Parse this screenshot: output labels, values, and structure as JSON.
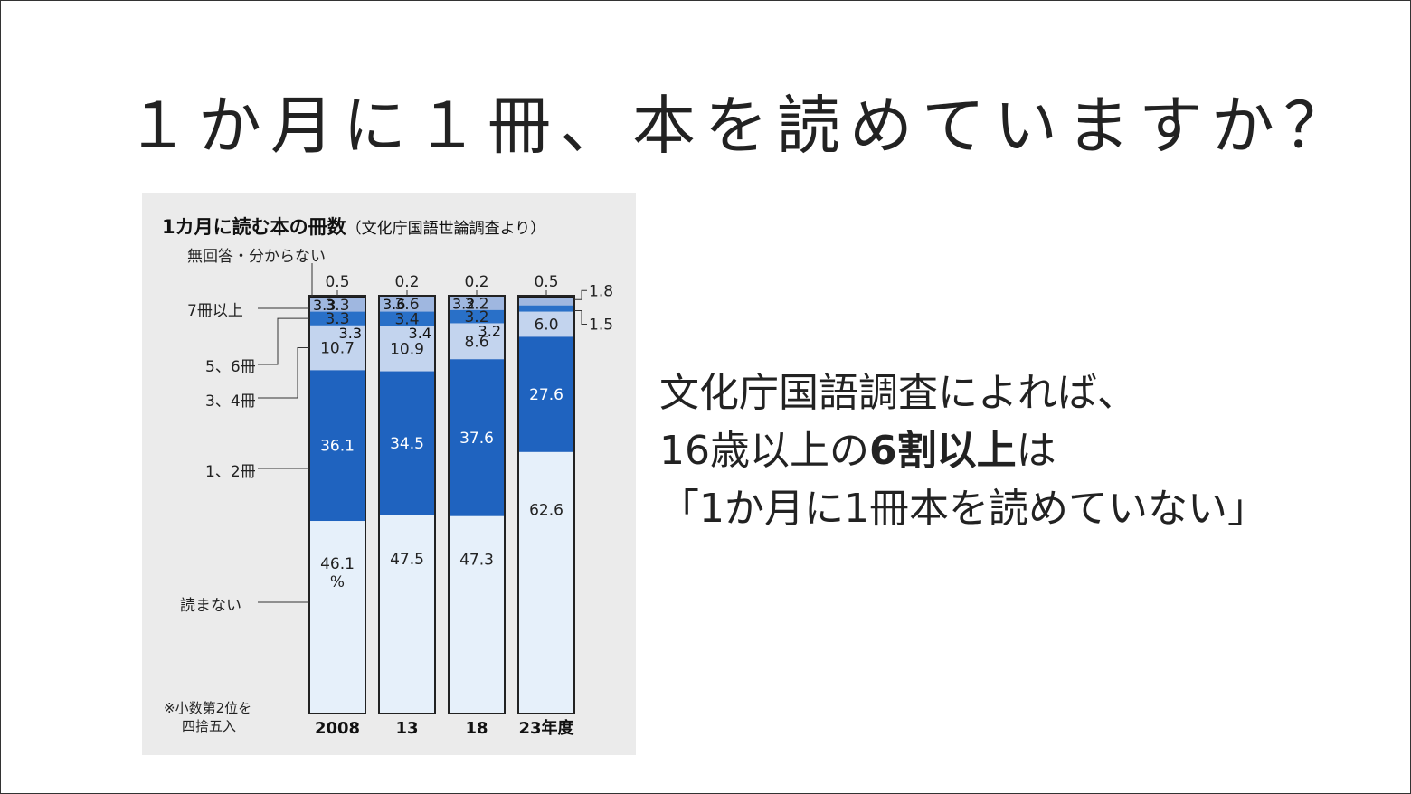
{
  "slide": {
    "title": "１か月に１冊、本を読めていますか？",
    "text_line1": "文化庁国語調査によれば、",
    "text_line2_pre": "16歳以上の",
    "text_line2_bold": "6割以上",
    "text_line2_post": "は",
    "text_line3": "「1か月に1冊本を読めていない」"
  },
  "figure": {
    "title": "1カ月に読む本の冊数",
    "subtitle": "（文化庁国語世論調査より）",
    "note_line1": "※小数第2位を",
    "note_line2": "四捨五入",
    "category_labels": {
      "no_answer": "無回答・分からない",
      "seven_plus": "7冊以上",
      "five_six": "5、6冊",
      "three_four": "3、4冊",
      "one_two": "1、2冊",
      "none": "読まない"
    }
  },
  "chart_data": {
    "type": "bar",
    "stacked": true,
    "categories": [
      "2008",
      "13",
      "18",
      "23年度"
    ],
    "series": [
      {
        "name": "読まない",
        "values": [
          46.1,
          47.5,
          47.3,
          62.6
        ],
        "labels": [
          "46.1\n%",
          "47.5",
          "47.3",
          "62.6"
        ],
        "color": "#e6f0fa"
      },
      {
        "name": "1、2冊",
        "values": [
          36.1,
          34.5,
          37.6,
          27.6
        ],
        "labels": [
          "36.1",
          "34.5",
          "37.6",
          "27.6"
        ],
        "color": "#1f63bf"
      },
      {
        "name": "3、4冊",
        "values": [
          10.7,
          10.9,
          8.6,
          6.0
        ],
        "labels": [
          "10.7",
          "10.9",
          "8.6",
          "6.0"
        ],
        "color": "#c3d4ee"
      },
      {
        "name": "5、6冊",
        "values": [
          3.3,
          3.4,
          3.2,
          1.5
        ],
        "labels": [
          "3.3",
          "3.4",
          "3.2",
          "1.5"
        ],
        "color": "#2970c8"
      },
      {
        "name": "7冊以上",
        "values": [
          3.3,
          3.6,
          3.2,
          1.8
        ],
        "labels": [
          "3.3",
          "3.6",
          "3.2",
          "1.8"
        ],
        "color": "#9fb7e0"
      },
      {
        "name": "無回答・分からない",
        "values": [
          0.5,
          0.2,
          0.2,
          0.5
        ],
        "labels": [
          "0.5",
          "0.2",
          "0.2",
          "0.5"
        ],
        "color": "#1a1a1a"
      }
    ],
    "ylim": [
      0,
      100
    ],
    "grid": false,
    "legend": "left-side labels"
  }
}
